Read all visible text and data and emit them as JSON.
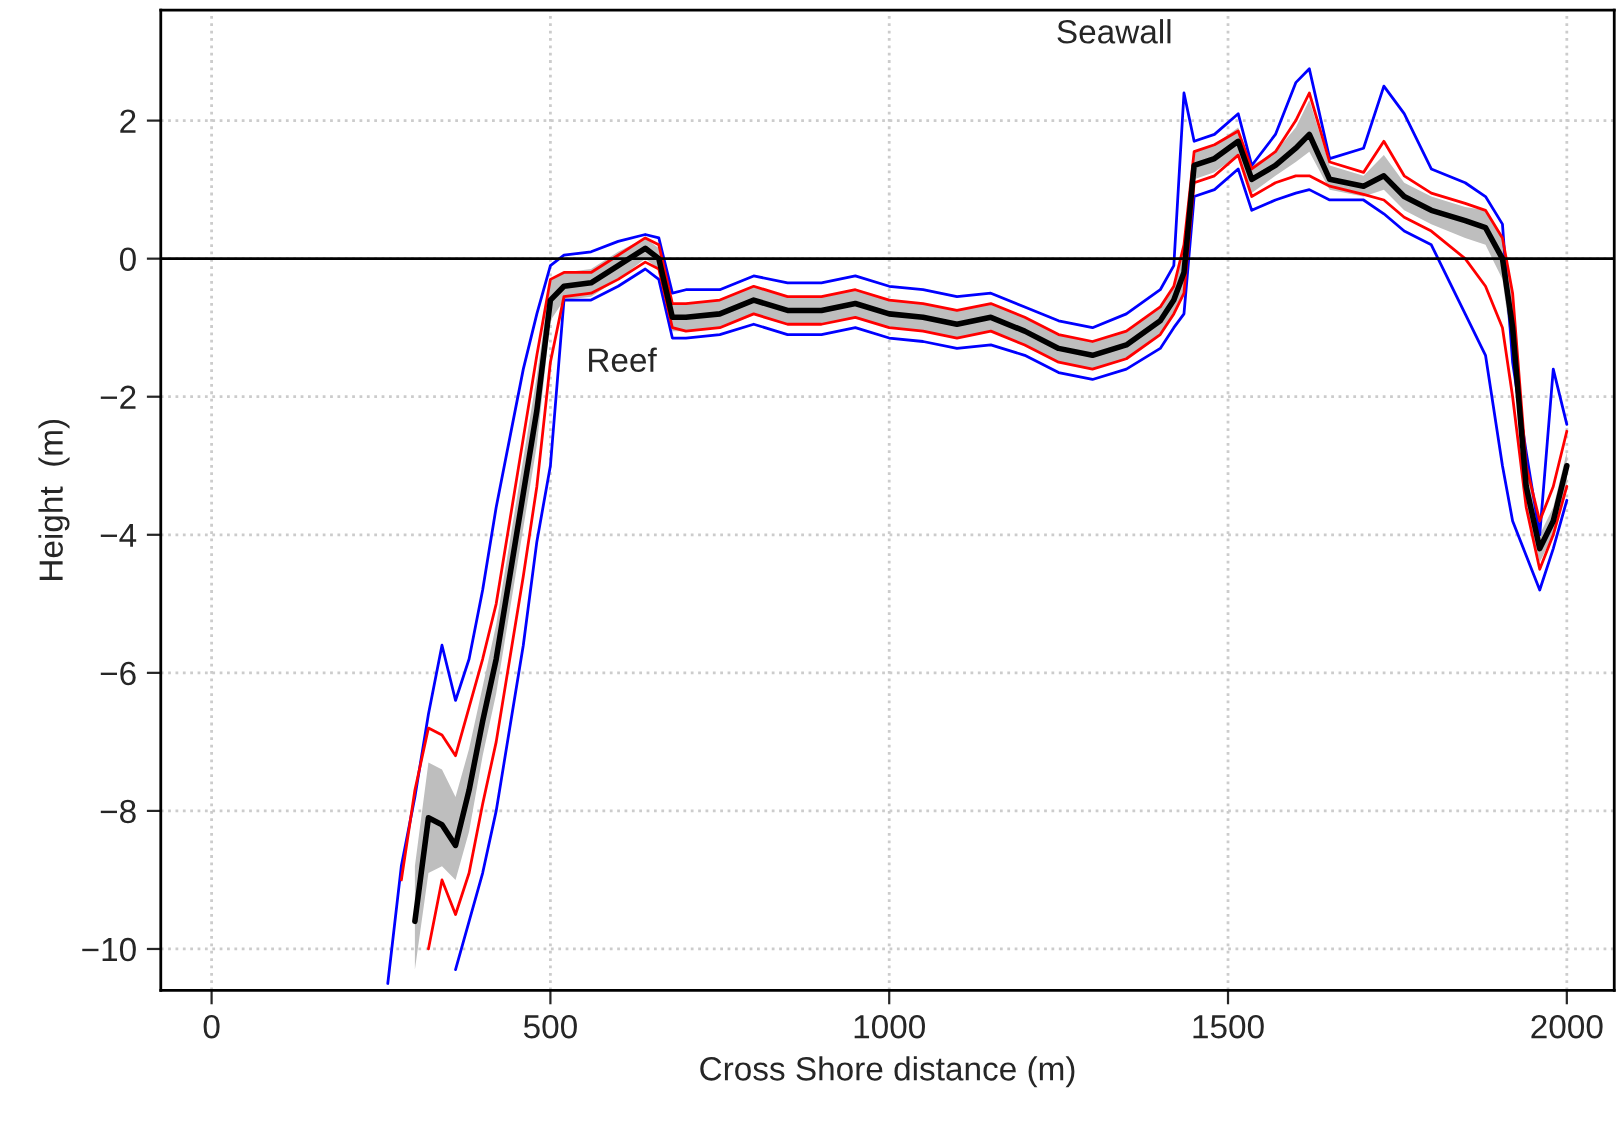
{
  "chart_data": {
    "type": "line",
    "xlabel": "Cross Shore distance (m)",
    "ylabel": "Height  (m)",
    "x": [
      260,
      280,
      300,
      320,
      340,
      360,
      380,
      400,
      420,
      440,
      460,
      480,
      500,
      520,
      560,
      600,
      640,
      660,
      680,
      700,
      750,
      800,
      850,
      900,
      950,
      1000,
      1050,
      1100,
      1150,
      1200,
      1250,
      1300,
      1350,
      1400,
      1420,
      1435,
      1450,
      1480,
      1515,
      1535,
      1570,
      1600,
      1620,
      1650,
      1700,
      1730,
      1760,
      1800,
      1850,
      1880,
      1905,
      1920,
      1940,
      1960,
      1980,
      2000
    ],
    "series": [
      {
        "color": "#0000ff",
        "values": [
          -10.5,
          -8.8,
          -7.8,
          -6.6,
          -5.6,
          -6.4,
          -5.8,
          -4.8,
          -3.6,
          -2.6,
          -1.6,
          -0.8,
          -0.1,
          0.05,
          0.1,
          0.25,
          0.35,
          0.3,
          -0.5,
          -0.45,
          -0.45,
          -0.25,
          -0.35,
          -0.35,
          -0.25,
          -0.4,
          -0.45,
          -0.55,
          -0.5,
          -0.7,
          -0.9,
          -1.0,
          -0.8,
          -0.45,
          -0.1,
          2.4,
          1.7,
          1.8,
          2.1,
          1.35,
          1.8,
          2.55,
          2.75,
          1.45,
          1.6,
          2.5,
          2.1,
          1.3,
          1.1,
          0.9,
          0.5,
          -1.5,
          -2.8,
          -4.0,
          -1.6,
          -2.4
        ]
      },
      {
        "color": "#0000ff",
        "values": [
          null,
          null,
          null,
          null,
          null,
          -10.3,
          -9.6,
          -8.9,
          -8.0,
          -6.8,
          -5.6,
          -4.1,
          -3.0,
          -0.6,
          -0.6,
          -0.4,
          -0.15,
          -0.3,
          -1.15,
          -1.15,
          -1.1,
          -0.95,
          -1.1,
          -1.1,
          -1.0,
          -1.15,
          -1.2,
          -1.3,
          -1.25,
          -1.4,
          -1.65,
          -1.75,
          -1.6,
          -1.3,
          -1.0,
          -0.8,
          0.9,
          1.0,
          1.3,
          0.7,
          0.85,
          0.95,
          1.0,
          0.85,
          0.85,
          0.65,
          0.4,
          0.2,
          -0.8,
          -1.4,
          -3.0,
          -3.8,
          -4.3,
          -4.8,
          -4.2,
          -3.5
        ]
      },
      {
        "color": "#000000",
        "values": [
          null,
          null,
          -9.6,
          -8.1,
          -8.2,
          -8.5,
          -7.7,
          -6.7,
          -5.8,
          -4.6,
          -3.4,
          -2.2,
          -0.6,
          -0.4,
          -0.35,
          -0.1,
          0.15,
          0.0,
          -0.85,
          -0.85,
          -0.8,
          -0.6,
          -0.75,
          -0.75,
          -0.65,
          -0.8,
          -0.85,
          -0.95,
          -0.85,
          -1.05,
          -1.3,
          -1.4,
          -1.25,
          -0.9,
          -0.6,
          -0.2,
          1.35,
          1.45,
          1.7,
          1.15,
          1.35,
          1.6,
          1.8,
          1.15,
          1.05,
          1.2,
          0.9,
          0.7,
          0.55,
          0.45,
          0.0,
          -1.0,
          -3.3,
          -4.2,
          -3.8,
          -3.0
        ],
        "lower": [
          null,
          null,
          -10.3,
          -8.9,
          -8.8,
          -9.0,
          -8.3,
          -7.2,
          -6.3,
          -5.1,
          -3.9,
          -2.7,
          -0.9,
          -0.6,
          -0.55,
          -0.3,
          0.0,
          -0.15,
          -1.05,
          -1.05,
          -1.0,
          -0.8,
          -0.95,
          -0.95,
          -0.85,
          -1.0,
          -1.05,
          -1.15,
          -1.05,
          -1.25,
          -1.5,
          -1.6,
          -1.45,
          -1.1,
          -0.8,
          -0.5,
          1.15,
          1.25,
          1.5,
          0.95,
          1.2,
          1.4,
          1.55,
          1.0,
          0.9,
          1.0,
          0.7,
          0.5,
          0.3,
          0.2,
          -0.3,
          -1.4,
          -3.6,
          -4.4,
          -4.0,
          -3.3
        ],
        "upper": [
          null,
          null,
          -8.8,
          -7.3,
          -7.4,
          -7.8,
          -7.1,
          -6.2,
          -5.3,
          -4.1,
          -2.9,
          -1.7,
          -0.3,
          -0.2,
          -0.15,
          0.1,
          0.3,
          0.15,
          -0.65,
          -0.65,
          -0.6,
          -0.4,
          -0.55,
          -0.55,
          -0.45,
          -0.6,
          -0.65,
          -0.75,
          -0.65,
          -0.85,
          -1.1,
          -1.2,
          -1.05,
          -0.7,
          -0.4,
          0.1,
          1.55,
          1.65,
          1.9,
          1.35,
          1.55,
          1.9,
          2.3,
          1.35,
          1.2,
          1.5,
          1.1,
          0.9,
          0.75,
          0.7,
          0.3,
          -0.6,
          -3.0,
          -4.0,
          -3.6,
          -2.8
        ]
      },
      {
        "color": "#ff0000",
        "values": [
          null,
          -9.0,
          -7.7,
          -6.8,
          -6.9,
          -7.2,
          -6.5,
          -5.8,
          -5.0,
          -3.8,
          -2.6,
          -1.4,
          -0.3,
          -0.2,
          -0.2,
          0.05,
          0.3,
          0.2,
          -0.65,
          -0.65,
          -0.6,
          -0.4,
          -0.55,
          -0.55,
          -0.45,
          -0.6,
          -0.65,
          -0.75,
          -0.65,
          -0.85,
          -1.1,
          -1.2,
          -1.05,
          -0.7,
          -0.4,
          0.2,
          1.55,
          1.65,
          1.85,
          1.3,
          1.55,
          2.0,
          2.4,
          1.4,
          1.25,
          1.7,
          1.2,
          0.95,
          0.8,
          0.7,
          0.3,
          -0.5,
          -3.0,
          -3.8,
          -3.3,
          -2.5
        ]
      },
      {
        "color": "#ff0000",
        "values": [
          null,
          null,
          null,
          -10.0,
          -9.0,
          -9.5,
          -8.9,
          -7.9,
          -7.0,
          -5.8,
          -4.6,
          -3.3,
          -1.5,
          -0.55,
          -0.5,
          -0.3,
          -0.05,
          -0.15,
          -1.0,
          -1.05,
          -1.0,
          -0.8,
          -0.95,
          -0.95,
          -0.85,
          -1.0,
          -1.05,
          -1.15,
          -1.05,
          -1.25,
          -1.5,
          -1.6,
          -1.45,
          -1.1,
          -0.8,
          -0.5,
          1.1,
          1.2,
          1.5,
          0.9,
          1.1,
          1.2,
          1.2,
          1.05,
          0.93,
          0.85,
          0.6,
          0.4,
          0.0,
          -0.4,
          -1.0,
          -2.0,
          -3.6,
          -4.5,
          -4.0,
          -3.3
        ]
      }
    ],
    "xlim": [
      -75,
      2070
    ],
    "ylim": [
      -10.6,
      3.6
    ],
    "xticks": [
      0,
      500,
      1000,
      1500,
      2000
    ],
    "yticks": [
      {
        "value": -10,
        "label": "−10"
      },
      {
        "value": -8,
        "label": "−8"
      },
      {
        "value": -6,
        "label": "−6"
      },
      {
        "value": -4,
        "label": "−4"
      },
      {
        "value": -2,
        "label": "−2"
      },
      0,
      2
    ],
    "ref_lines": [
      {
        "axis": "y",
        "value": 0,
        "color": "#000000",
        "line_style": "solid"
      }
    ],
    "annotations": [
      "Reef",
      "Seawall"
    ],
    "grid": true,
    "marker": "none",
    "line_style": "solid"
  }
}
